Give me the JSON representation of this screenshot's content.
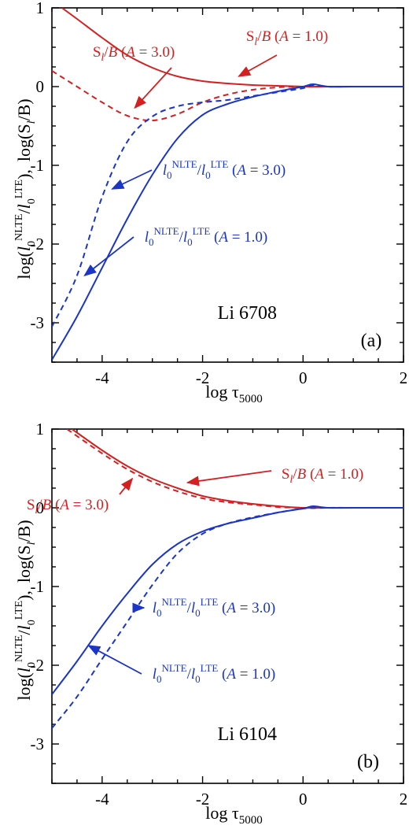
{
  "colors": {
    "red": "#d42020",
    "blue": "#1a35c8",
    "axis": "#000000"
  },
  "chart_data": [
    {
      "type": "line",
      "panel_label": "(a)",
      "line_label": "Li 6708",
      "xlabel": {
        "main": "log τ",
        "sub": "5000"
      },
      "ylabel": {
        "a": "log(",
        "l": "l",
        "sub0": "0",
        "nlte": "NLTE",
        "slash": "/",
        "lte": "LTE",
        "close": "),",
        "b": "log(S",
        "lsub": "l",
        "c": "/B)"
      },
      "xlim": [
        -5,
        2
      ],
      "ylim": [
        -3.5,
        1
      ],
      "xticks": [
        -4,
        -2,
        0,
        2
      ],
      "xtick_labels": [
        "-4",
        "-2",
        "0",
        "2"
      ],
      "yticks": [
        -3,
        -2,
        -1,
        0,
        1
      ],
      "ytick_labels": [
        "-3",
        "-2",
        "-1",
        "0",
        "1"
      ],
      "series": [
        {
          "id": "S_A3",
          "color": "red",
          "dash": false,
          "x": [
            -4.8,
            -4.5,
            -4.0,
            -3.5,
            -3.0,
            -2.5,
            -2.0,
            -1.5,
            -1.0,
            -0.5,
            0.0,
            0.5,
            1.0,
            2.0
          ],
          "y": [
            1.0,
            0.86,
            0.62,
            0.4,
            0.24,
            0.13,
            0.07,
            0.04,
            0.02,
            0.01,
            0.0,
            0.0,
            0.0,
            0.0
          ]
        },
        {
          "id": "S_A1",
          "color": "red",
          "dash": true,
          "x": [
            -5.0,
            -4.5,
            -4.0,
            -3.5,
            -3.0,
            -2.5,
            -2.0,
            -1.5,
            -1.0,
            -0.5,
            0.0,
            0.5,
            2.0
          ],
          "y": [
            0.2,
            0.0,
            -0.2,
            -0.37,
            -0.43,
            -0.35,
            -0.2,
            -0.1,
            -0.04,
            -0.01,
            0.0,
            0.0,
            0.0
          ]
        },
        {
          "id": "l_A3",
          "color": "blue",
          "dash": true,
          "x": [
            -5.0,
            -4.5,
            -4.0,
            -3.5,
            -3.0,
            -2.5,
            -2.0,
            -1.5,
            -1.0,
            -0.5,
            0.0,
            0.2,
            0.5,
            1.0,
            2.0
          ],
          "y": [
            -3.05,
            -2.4,
            -1.4,
            -0.7,
            -0.38,
            -0.25,
            -0.2,
            -0.17,
            -0.12,
            -0.07,
            -0.02,
            0.02,
            0.0,
            0.0,
            0.0
          ]
        },
        {
          "id": "l_A1",
          "color": "blue",
          "dash": false,
          "x": [
            -5.0,
            -4.5,
            -4.0,
            -3.5,
            -3.0,
            -2.5,
            -2.0,
            -1.5,
            -1.0,
            -0.5,
            0.0,
            0.2,
            0.5,
            1.0,
            2.0
          ],
          "y": [
            -3.47,
            -2.92,
            -2.3,
            -1.68,
            -1.12,
            -0.66,
            -0.36,
            -0.22,
            -0.13,
            -0.06,
            0.0,
            0.03,
            0.0,
            0.0,
            0.0
          ]
        }
      ],
      "annotations": [
        {
          "series": "S_A3",
          "color": "red",
          "parts": [
            "S",
            "l",
            "/",
            "B",
            " (",
            "A",
            " = 3.0)"
          ],
          "head": [
            -3.35,
            -0.27
          ]
        },
        {
          "series": "S_A1",
          "color": "red",
          "parts": [
            "S",
            "l",
            "/",
            "B",
            " (",
            "A",
            " = 1.0)"
          ],
          "head": [
            -1.28,
            0.13
          ]
        },
        {
          "series": "l_A3",
          "color": "blue",
          "parts": [
            "l",
            "0",
            "NLTE",
            "/",
            "l",
            "0",
            "LTE",
            " (",
            "A",
            " = 3.0)"
          ],
          "head": [
            -3.8,
            -1.3
          ]
        },
        {
          "series": "l_A1",
          "color": "blue",
          "parts": [
            "l",
            "0",
            "NLTE",
            "/",
            "l",
            "0",
            "LTE",
            " (",
            "A",
            " = 1.0)"
          ],
          "head": [
            -4.35,
            -2.4
          ]
        }
      ]
    },
    {
      "type": "line",
      "panel_label": "(b)",
      "line_label": "Li 6104",
      "xlabel": {
        "main": "log τ",
        "sub": "5000"
      },
      "ylabel": {
        "a": "log(",
        "l": "l",
        "sub0": "0",
        "nlte": "NLTE",
        "slash": "/",
        "lte": "LTE",
        "close": "),",
        "b": "log(S",
        "lsub": "l",
        "c": "/B)"
      },
      "xlim": [
        -5,
        2
      ],
      "ylim": [
        -3.5,
        1
      ],
      "xticks": [
        -4,
        -2,
        0,
        2
      ],
      "xtick_labels": [
        "-4",
        "-2",
        "0",
        "2"
      ],
      "yticks": [
        -3,
        -2,
        -1,
        0,
        1
      ],
      "ytick_labels": [
        "-3",
        "-2",
        "-1",
        "0",
        "1"
      ],
      "series": [
        {
          "id": "S_A1",
          "color": "red",
          "dash": false,
          "x": [
            -4.6,
            -4.0,
            -3.5,
            -3.0,
            -2.5,
            -2.0,
            -1.5,
            -1.0,
            -0.5,
            0.0,
            0.5,
            1.0,
            2.0
          ],
          "y": [
            1.0,
            0.73,
            0.53,
            0.37,
            0.25,
            0.15,
            0.09,
            0.05,
            0.02,
            0.0,
            0.0,
            0.0,
            0.0
          ]
        },
        {
          "id": "S_A3",
          "color": "red",
          "dash": true,
          "x": [
            -4.7,
            -4.0,
            -3.5,
            -3.0,
            -2.5,
            -2.0,
            -1.5,
            -1.0,
            -0.5,
            0.0,
            0.5,
            1.0,
            2.0
          ],
          "y": [
            1.0,
            0.69,
            0.49,
            0.33,
            0.21,
            0.12,
            0.07,
            0.04,
            0.01,
            0.0,
            0.0,
            0.0,
            0.0
          ]
        },
        {
          "id": "l_A1",
          "color": "blue",
          "dash": false,
          "x": [
            -5.0,
            -4.5,
            -4.0,
            -3.5,
            -3.0,
            -2.5,
            -2.0,
            -1.5,
            -1.0,
            -0.5,
            0.0,
            0.2,
            0.5,
            1.0,
            2.0
          ],
          "y": [
            -2.37,
            -1.95,
            -1.5,
            -1.09,
            -0.72,
            -0.46,
            -0.3,
            -0.2,
            -0.13,
            -0.06,
            -0.01,
            0.02,
            0.0,
            0.0,
            0.0
          ]
        },
        {
          "id": "l_A3",
          "color": "blue",
          "dash": true,
          "x": [
            -5.0,
            -4.5,
            -4.0,
            -3.5,
            -3.0,
            -2.5,
            -2.0,
            -1.5,
            -1.0,
            -0.5,
            0.0,
            0.5,
            1.0,
            2.0
          ],
          "y": [
            -2.8,
            -2.4,
            -1.92,
            -1.45,
            -0.98,
            -0.58,
            -0.33,
            -0.2,
            -0.12,
            -0.06,
            -0.01,
            0.0,
            0.0,
            0.0
          ]
        }
      ],
      "annotations": [
        {
          "series": "S_A1",
          "color": "red",
          "parts": [
            "S",
            "l",
            "/",
            "B",
            " (",
            "A",
            " = 1.0)"
          ],
          "head": [
            -2.3,
            0.32
          ]
        },
        {
          "series": "S_A3",
          "color": "red",
          "parts": [
            "S",
            "l",
            "/",
            "B",
            " (",
            "A",
            " = 3.0)"
          ],
          "head": [
            -3.4,
            0.37
          ]
        },
        {
          "series": "l_A3",
          "color": "blue",
          "parts": [
            "l",
            "0",
            "NLTE",
            "/",
            "l",
            "0",
            "LTE",
            " (",
            "A",
            " = 3.0)"
          ],
          "head": [
            -3.17,
            -1.27
          ]
        },
        {
          "series": "l_A1",
          "color": "blue",
          "parts": [
            "l",
            "0",
            "NLTE",
            "/",
            "l",
            "0",
            "LTE",
            " (",
            "A",
            " = 1.0)"
          ],
          "head": [
            -4.27,
            -1.75
          ]
        }
      ]
    }
  ]
}
